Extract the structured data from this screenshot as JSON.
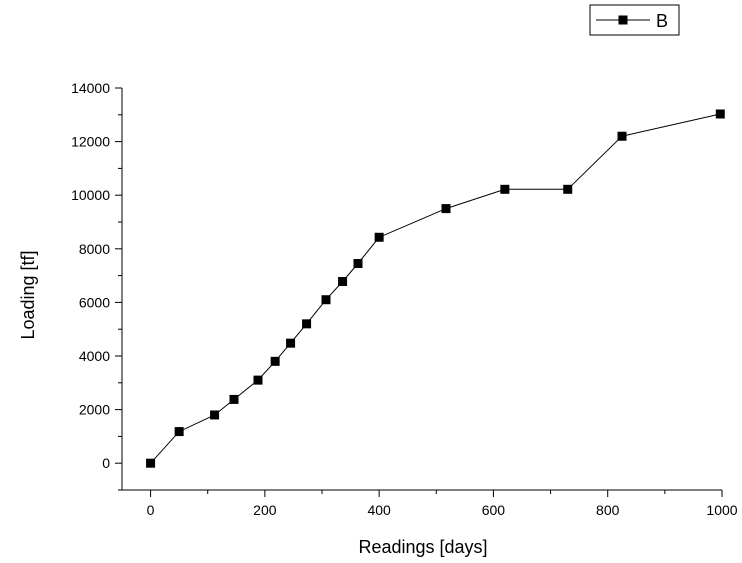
{
  "chart_data": {
    "type": "line",
    "title": "",
    "xlabel": "Readings [days]",
    "ylabel": "Loading [tf]",
    "xlim": [
      -50,
      1000
    ],
    "ylim": [
      -1000,
      14000
    ],
    "xticks": [
      0,
      200,
      400,
      600,
      800,
      1000
    ],
    "yticks": [
      0,
      2000,
      4000,
      6000,
      8000,
      10000,
      12000,
      14000
    ],
    "x_tick_labels": [
      "0",
      "200",
      "400",
      "600",
      "800",
      "1000"
    ],
    "y_tick_labels": [
      "0",
      "2000",
      "4000",
      "6000",
      "8000",
      "10000",
      "12000",
      "14000"
    ],
    "grid": false,
    "legend": {
      "position": "top-right",
      "entries": [
        "B"
      ]
    },
    "colors": {
      "line": "#000000",
      "marker": "#000000"
    },
    "series": [
      {
        "name": "B",
        "marker": "square",
        "points": [
          [
            0,
            0
          ],
          [
            50,
            1180
          ],
          [
            112,
            1800
          ],
          [
            146,
            2380
          ],
          [
            188,
            3100
          ],
          [
            218,
            3800
          ],
          [
            245,
            4480
          ],
          [
            273,
            5200
          ],
          [
            307,
            6100
          ],
          [
            336,
            6780
          ],
          [
            363,
            7450
          ],
          [
            400,
            8430
          ],
          [
            517,
            9500
          ],
          [
            620,
            10220
          ],
          [
            730,
            10220
          ],
          [
            825,
            12200
          ],
          [
            997,
            13030
          ]
        ]
      }
    ]
  }
}
